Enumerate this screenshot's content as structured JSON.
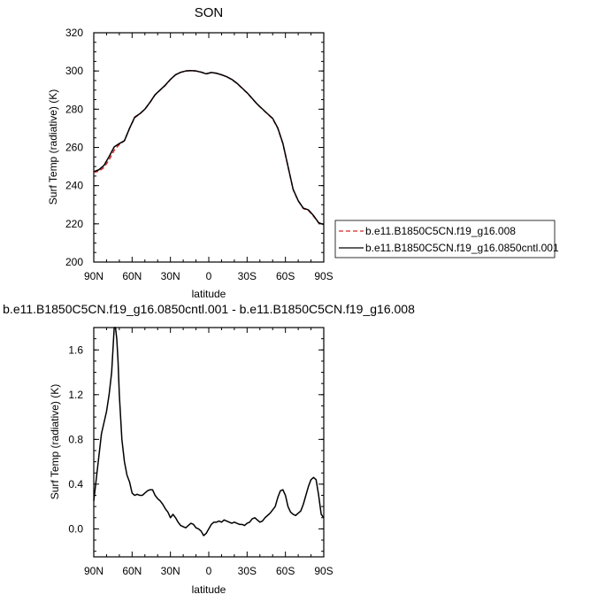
{
  "chart_data": [
    {
      "type": "line",
      "title": "SON",
      "xlabel": "latitude",
      "ylabel": "Surf Temp (radiative) (K)",
      "xlim": [
        90,
        -90
      ],
      "ylim": [
        200,
        320
      ],
      "xticks": [
        90,
        60,
        30,
        0,
        -30,
        -60,
        -90
      ],
      "xtick_labels": [
        "90N",
        "60N",
        "30N",
        "0",
        "30S",
        "60S",
        "90S"
      ],
      "yticks": [
        200,
        220,
        240,
        260,
        280,
        300,
        320
      ],
      "ytick_labels": [
        "200",
        "220",
        "240",
        "260",
        "280",
        "300",
        "320"
      ],
      "legend_position": "right",
      "series": [
        {
          "name": "b.e11.B1850C5CN.f19_g16.008",
          "color": "#d62728",
          "style": "dashed",
          "x": [
            90,
            86,
            82,
            78,
            74,
            70,
            66,
            62,
            58,
            54,
            50,
            46,
            42,
            38,
            34,
            30,
            26,
            22,
            18,
            14,
            10,
            6,
            2,
            -2,
            -6,
            -10,
            -14,
            -18,
            -22,
            -26,
            -30,
            -34,
            -38,
            -42,
            -46,
            -50,
            -54,
            -58,
            -62,
            -66,
            -70,
            -74,
            -78,
            -82,
            -86,
            -90
          ],
          "y": [
            247,
            247.5,
            249.5,
            253.5,
            258.5,
            261.5,
            263.5,
            270,
            275.5,
            277.5,
            280,
            283.5,
            287.5,
            290,
            292.5,
            295.5,
            298,
            299.3,
            300,
            300.2,
            300,
            299.4,
            298.5,
            299.2,
            298.8,
            298,
            297,
            295.5,
            293.5,
            291,
            288.5,
            285.5,
            282.5,
            280,
            277.5,
            275,
            270,
            262,
            250,
            238,
            232,
            228,
            227,
            224,
            220.5,
            219.5
          ]
        },
        {
          "name": "b.e11.B1850C5CN.f19_g16.0850cntl.001",
          "color": "#000000",
          "style": "solid",
          "x": [
            90,
            86,
            82,
            78,
            74,
            70,
            66,
            62,
            58,
            54,
            50,
            46,
            42,
            38,
            34,
            30,
            26,
            22,
            18,
            14,
            10,
            6,
            2,
            -2,
            -6,
            -10,
            -14,
            -18,
            -22,
            -26,
            -30,
            -34,
            -38,
            -42,
            -46,
            -50,
            -54,
            -58,
            -62,
            -66,
            -70,
            -74,
            -78,
            -82,
            -86,
            -90
          ],
          "y": [
            247.3,
            248.3,
            250.6,
            255.2,
            260.3,
            262,
            263.5,
            270,
            275.8,
            277.6,
            280,
            283.6,
            287.6,
            290.1,
            292.6,
            295.6,
            298,
            299.3,
            300,
            300.2,
            300,
            299.4,
            298.5,
            299.2,
            298.8,
            298,
            297,
            295.6,
            293.6,
            291.1,
            288.6,
            285.6,
            282.6,
            280.1,
            277.6,
            275.2,
            270.2,
            262.1,
            250.1,
            238.1,
            232.1,
            228.2,
            227.3,
            224.3,
            220.6,
            219.6
          ]
        }
      ]
    },
    {
      "type": "line",
      "title": "b.e11.B1850C5CN.f19_g16.0850cntl.001 - b.e11.B1850C5CN.f19_g16.008",
      "xlabel": "latitude",
      "ylabel": "Surf Temp (radiative) (K)",
      "xlim": [
        90,
        -90
      ],
      "ylim": [
        -0.25,
        1.8
      ],
      "xticks": [
        90,
        60,
        30,
        0,
        -30,
        -60,
        -90
      ],
      "xtick_labels": [
        "90N",
        "60N",
        "30N",
        "0",
        "30S",
        "60S",
        "90S"
      ],
      "yticks": [
        0,
        0.4,
        0.8,
        1.2,
        1.6
      ],
      "ytick_labels": [
        "0.0",
        "0.4",
        "0.8",
        "1.2",
        "1.6"
      ],
      "series": [
        {
          "color": "#000000",
          "style": "solid",
          "x": [
            90,
            88,
            86,
            84,
            82,
            80,
            78,
            76,
            75,
            74,
            73,
            72,
            71,
            70,
            68,
            66,
            64,
            62,
            60,
            58,
            56,
            54,
            52,
            50,
            48,
            46,
            44,
            42,
            40,
            38,
            36,
            34,
            32,
            30,
            28,
            26,
            24,
            22,
            20,
            18,
            16,
            14,
            12,
            10,
            8,
            6,
            4,
            2,
            0,
            -2,
            -4,
            -6,
            -8,
            -10,
            -12,
            -14,
            -16,
            -18,
            -20,
            -22,
            -24,
            -26,
            -28,
            -30,
            -32,
            -34,
            -36,
            -38,
            -40,
            -42,
            -44,
            -46,
            -48,
            -50,
            -52,
            -54,
            -56,
            -58,
            -60,
            -62,
            -64,
            -66,
            -68,
            -70,
            -72,
            -74,
            -76,
            -78,
            -80,
            -82,
            -84,
            -86,
            -88,
            -90
          ],
          "y": [
            0.25,
            0.45,
            0.65,
            0.85,
            0.95,
            1.05,
            1.2,
            1.4,
            1.6,
            1.8,
            1.8,
            1.7,
            1.5,
            1.2,
            0.8,
            0.6,
            0.48,
            0.42,
            0.32,
            0.3,
            0.31,
            0.3,
            0.3,
            0.32,
            0.34,
            0.35,
            0.35,
            0.3,
            0.27,
            0.25,
            0.22,
            0.18,
            0.15,
            0.1,
            0.13,
            0.1,
            0.06,
            0.03,
            0.02,
            0.01,
            0.03,
            0.05,
            0.04,
            0.01,
            0.0,
            -0.02,
            -0.06,
            -0.04,
            0.0,
            0.04,
            0.06,
            0.06,
            0.07,
            0.06,
            0.08,
            0.07,
            0.06,
            0.05,
            0.06,
            0.05,
            0.04,
            0.04,
            0.03,
            0.05,
            0.06,
            0.09,
            0.1,
            0.08,
            0.06,
            0.07,
            0.1,
            0.12,
            0.14,
            0.17,
            0.2,
            0.28,
            0.34,
            0.35,
            0.3,
            0.2,
            0.15,
            0.13,
            0.12,
            0.14,
            0.16,
            0.22,
            0.3,
            0.38,
            0.44,
            0.46,
            0.44,
            0.3,
            0.13,
            0.1
          ]
        }
      ]
    }
  ]
}
